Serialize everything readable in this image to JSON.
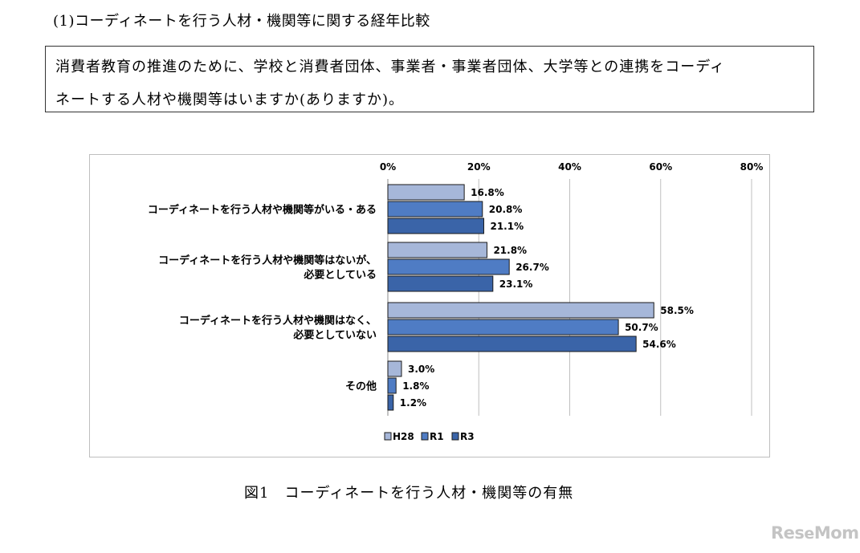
{
  "page": {
    "section_heading": "(1)コーディネートを行う人材・機関等に関する経年比較",
    "question_line1": "消費者教育の推進のために、学校と消費者団体、事業者・事業者団体、大学等との連携をコーディ",
    "question_line2": "ネートする人材や機関等はいますか(ありますか)。",
    "figure_caption": "図1　コーディネートを行う人材・機関等の有無",
    "logo_text": "ReseMom"
  },
  "chart_data": {
    "type": "bar",
    "orientation": "horizontal",
    "categories": [
      [
        "コーディネートを行う人材や機関等がいる・ある"
      ],
      [
        "コーディネートを行う人材や機関等はないが、",
        "必要としている"
      ],
      [
        "コーディネートを行う人材や機関はなく、",
        "必要としていない"
      ],
      [
        "その他"
      ]
    ],
    "series": [
      {
        "name": "H28",
        "color": "#a6b7d9",
        "values": [
          16.8,
          21.8,
          58.5,
          3.0
        ]
      },
      {
        "name": "R1",
        "color": "#4f7cc4",
        "values": [
          20.8,
          26.7,
          50.7,
          1.8
        ]
      },
      {
        "name": "R3",
        "color": "#3a64a8",
        "values": [
          21.1,
          23.1,
          54.6,
          1.2
        ]
      }
    ],
    "value_unit": "%",
    "xlim": [
      0,
      80
    ],
    "xticks": [
      0,
      20,
      40,
      60,
      80
    ],
    "tick_labels": [
      "0%",
      "20%",
      "40%",
      "60%",
      "80%"
    ],
    "axis_position": "top",
    "grid": true,
    "legend_position": "bottom-center",
    "data_labels": true
  }
}
